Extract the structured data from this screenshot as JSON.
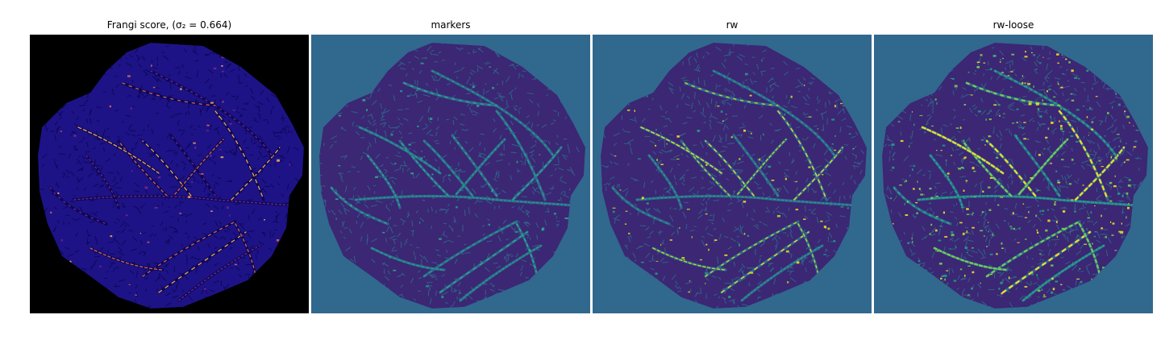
{
  "figure": {
    "panels": [
      {
        "id": "frangi",
        "title": "Frangi score, (σ₂ = 0.664)",
        "background": "#000000",
        "tissue_color": "#1d1387",
        "texture_color": "#0b0650",
        "vessel_colors": [
          "#7a2a8c",
          "#d96a55",
          "#f6b05a"
        ]
      },
      {
        "id": "markers",
        "title": "markers",
        "background": "#31688e",
        "tissue_color": "#3b2774",
        "texture_color": "#2f6f8d",
        "vessel_colors": [
          "#24a18a",
          "#2fb090"
        ]
      },
      {
        "id": "rw",
        "title": "rw",
        "background": "#31688e",
        "tissue_color": "#3b2774",
        "texture_color": "#2f6f8d",
        "vessel_colors": [
          "#24a18a",
          "#c8e020",
          "#fde725"
        ]
      },
      {
        "id": "rw-loose",
        "title": "rw-loose",
        "background": "#31688e",
        "tissue_color": "#3b2774",
        "texture_color": "#2f6f8d",
        "vessel_colors": [
          "#24a18a",
          "#7ad151",
          "#fde725"
        ]
      }
    ]
  }
}
